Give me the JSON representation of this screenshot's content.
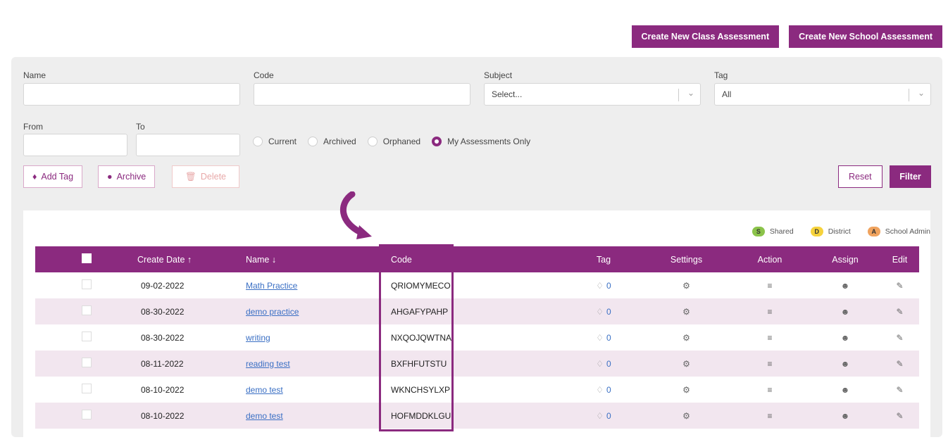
{
  "header": {
    "create_class": "Create New Class Assessment",
    "create_school": "Create New School Assessment"
  },
  "filters": {
    "name_label": "Name",
    "code_label": "Code",
    "subject_label": "Subject",
    "subject_value": "Select...",
    "tag_label": "Tag",
    "tag_value": "All",
    "from_label": "From",
    "to_label": "To",
    "radios": [
      {
        "label": "Current",
        "selected": false
      },
      {
        "label": "Archived",
        "selected": false
      },
      {
        "label": "Orphaned",
        "selected": false
      },
      {
        "label": "My Assessments Only",
        "selected": true
      }
    ]
  },
  "actions": {
    "add_tag": "Add Tag",
    "archive": "Archive",
    "delete": "Delete",
    "reset": "Reset",
    "filter": "Filter"
  },
  "legend": [
    {
      "badge": "S",
      "label": "Shared",
      "color": "#8bc34a"
    },
    {
      "badge": "D",
      "label": "District",
      "color": "#f6d23c"
    },
    {
      "badge": "A",
      "label": "School Admin",
      "color": "#f0a35e"
    }
  ],
  "table": {
    "headers": {
      "create_date": "Create Date ↑",
      "name": "Name ↓",
      "code": "Code",
      "tag": "Tag",
      "settings": "Settings",
      "action": "Action",
      "assign": "Assign",
      "edit": "Edit"
    },
    "rows": [
      {
        "date": "09-02-2022",
        "name": "Math Practice",
        "code": "QRIOMYMECO",
        "tag": "0"
      },
      {
        "date": "08-30-2022",
        "name": "demo practice",
        "code": "AHGAFYPAHP",
        "tag": "0"
      },
      {
        "date": "08-30-2022",
        "name": "writing",
        "code": "NXQOJQWTNA",
        "tag": "0"
      },
      {
        "date": "08-11-2022",
        "name": "reading test",
        "code": "BXFHFUTSTU",
        "tag": "0"
      },
      {
        "date": "08-10-2022",
        "name": "demo test",
        "code": "WKNCHSYLXP",
        "tag": "0"
      },
      {
        "date": "08-10-2022",
        "name": "demo test",
        "code": "HOFMDDKLGU",
        "tag": "0"
      }
    ]
  },
  "colors": {
    "brand": "#8b2a7f",
    "row_alt": "#f2e6ef",
    "link": "#3a6fc4"
  }
}
